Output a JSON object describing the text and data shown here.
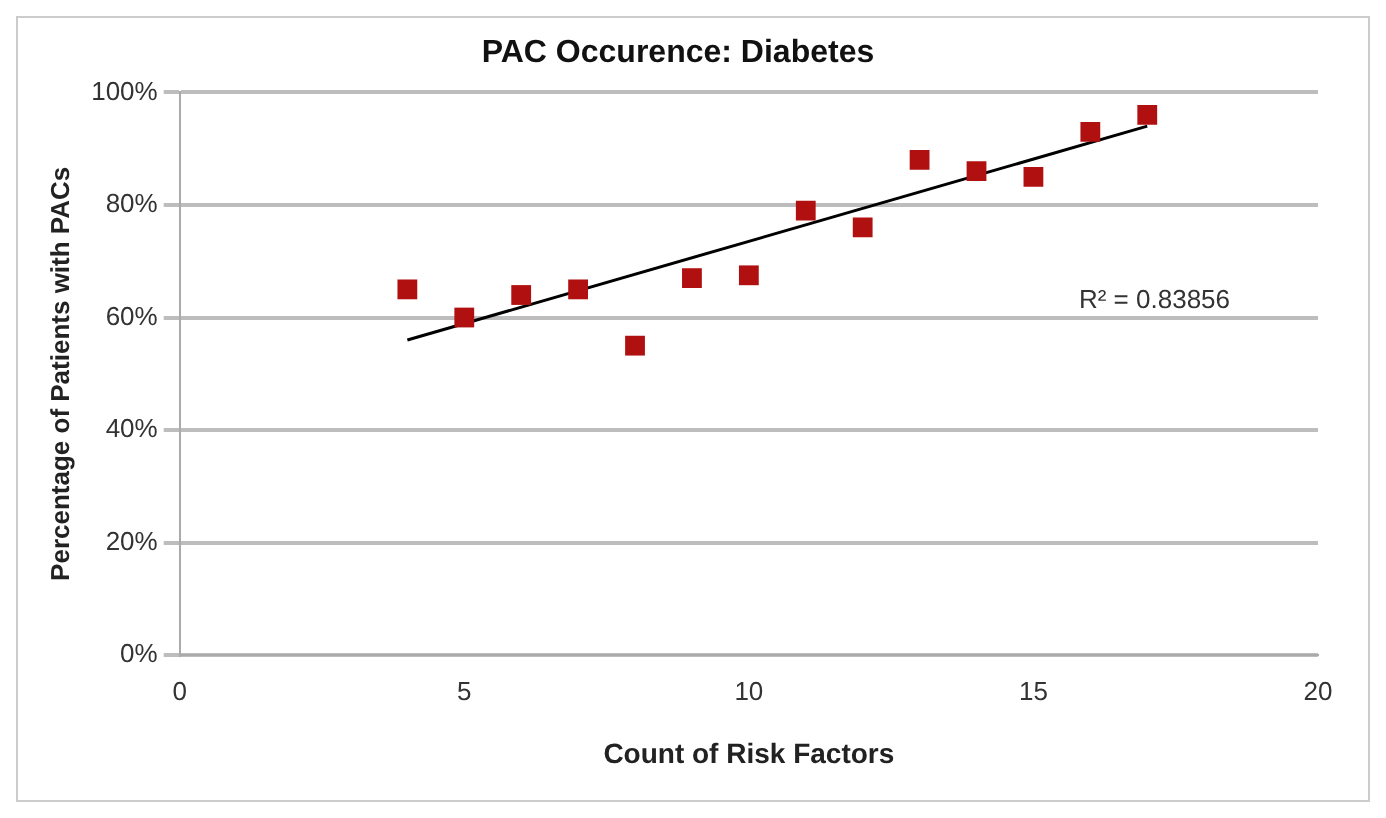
{
  "chart_data": {
    "type": "scatter",
    "title": "PAC Occurence: Diabetes",
    "xlabel": "Count of Risk Factors",
    "ylabel": "Percentage of Patients with PACs",
    "series": [
      {
        "type": "scatter",
        "color": "#b01010",
        "marker": "square",
        "x": [
          4,
          5,
          6,
          7,
          8,
          9,
          10,
          11,
          12,
          13,
          14,
          15,
          16,
          17
        ],
        "values": [
          65,
          60,
          64,
          65,
          55,
          67,
          67.5,
          79,
          76,
          88,
          86,
          85,
          93,
          96
        ]
      },
      {
        "type": "line",
        "color": "#000000",
        "marker": "none",
        "line_style": "solid",
        "x": [
          4,
          17
        ],
        "values": [
          56,
          94
        ]
      }
    ],
    "xlim": [
      0,
      20
    ],
    "xticks": [
      0,
      5,
      10,
      15,
      20
    ],
    "ylim": [
      0,
      100
    ],
    "yticks": [
      {
        "value": 0,
        "label": "0%"
      },
      {
        "value": 20,
        "label": "20%"
      },
      {
        "value": 40,
        "label": "40%"
      },
      {
        "value": 60,
        "label": "60%"
      },
      {
        "value": 80,
        "label": "80%"
      },
      {
        "value": 100,
        "label": "100%"
      }
    ],
    "grid": "y",
    "legend": false,
    "annotations": [
      "R² = 0.83856"
    ]
  }
}
